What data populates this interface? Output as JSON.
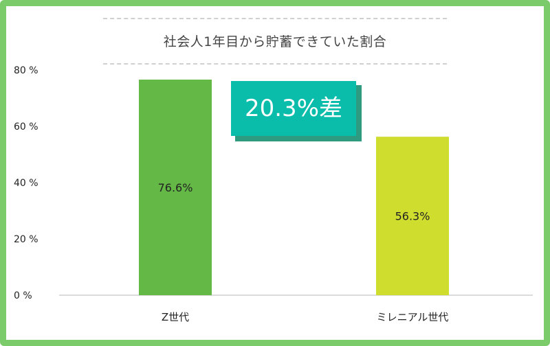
{
  "chart_data": {
    "type": "bar",
    "title": "社会人1年目から貯蓄できていた割合",
    "categories": [
      "Z世代",
      "ミレニアル世代"
    ],
    "values": [
      76.6,
      56.3
    ],
    "value_labels": [
      "76.6%",
      "56.3%"
    ],
    "bar_colors": [
      "#64b846",
      "#cedd2e"
    ],
    "yticks": [
      "0 %",
      "20 %",
      "40 %",
      "60 %",
      "80 %"
    ],
    "ylim": [
      0,
      80
    ],
    "grid": false,
    "annotation": "20.3%差"
  },
  "colors": {
    "frame": "#7ccb6a",
    "badge": "#0abcaa",
    "badge_shadow": "#2e9a80"
  }
}
